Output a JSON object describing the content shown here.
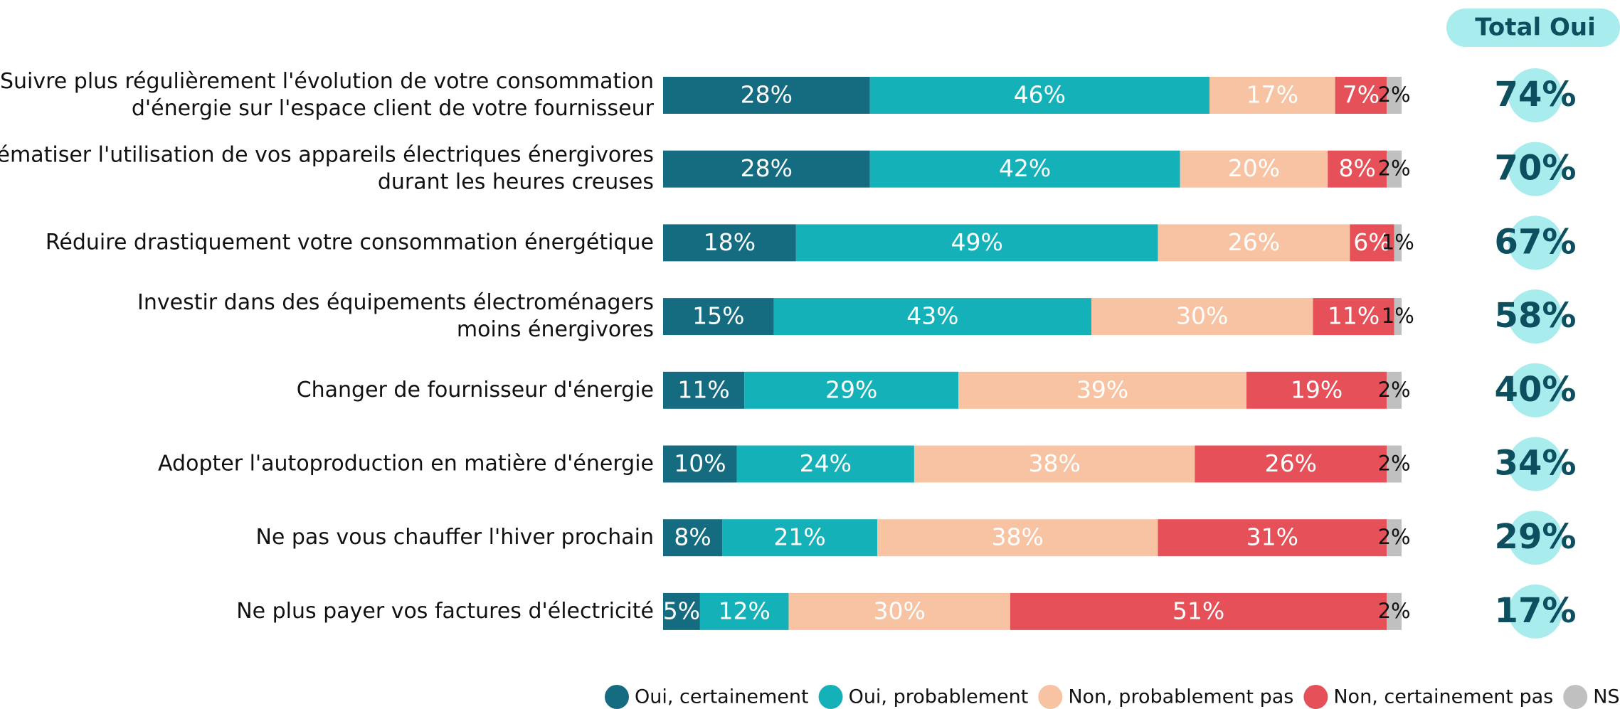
{
  "chart_data": {
    "type": "stacked_barh",
    "categories": [
      "Suivre plus régulièrement l'évolution de votre consommation\nd'énergie sur l'espace client de votre fournisseur",
      "Systématiser l'utilisation de vos appareils électriques énergivores\ndurant les heures creuses",
      "Réduire drastiquement votre consommation énergétique",
      "Investir dans des équipements électroménagers\nmoins énergivores",
      "Changer de fournisseur d'énergie",
      "Adopter l'autoproduction en matière d'énergie",
      "Ne pas vous chauffer l'hiver prochain",
      "Ne plus payer vos factures d'électricité"
    ],
    "xlim": [
      0,
      100
    ],
    "series": [
      {
        "name": "Oui, certainement",
        "color": "#156b80",
        "values": [
          28,
          28,
          18,
          15,
          11,
          10,
          8,
          5
        ],
        "value_labels": [
          "28%",
          "28%",
          "18%",
          "15%",
          "11%",
          "10%",
          "8%",
          "5%"
        ]
      },
      {
        "name": "Oui, probablement",
        "color": "#14b1b9",
        "values": [
          46,
          42,
          49,
          43,
          29,
          24,
          21,
          12
        ],
        "value_labels": [
          "46%",
          "42%",
          "49%",
          "43%",
          "29%",
          "24%",
          "21%",
          "12%"
        ]
      },
      {
        "name": "Non, probablement pas",
        "color": "#f7c3a3",
        "values": [
          17,
          20,
          26,
          30,
          39,
          38,
          38,
          30
        ],
        "value_labels": [
          "17%",
          "20%",
          "26%",
          "30%",
          "39%",
          "38%",
          "38%",
          "30%"
        ]
      },
      {
        "name": "Non, certainement pas",
        "color": "#e65058",
        "values": [
          7,
          8,
          6,
          11,
          19,
          26,
          31,
          51
        ],
        "value_labels": [
          "7%",
          "8%",
          "6%",
          "11%",
          "19%",
          "26%",
          "31%",
          "51%"
        ]
      },
      {
        "name": "NSP",
        "color": "#c0c0c0",
        "values": [
          2,
          2,
          1,
          1,
          2,
          2,
          2,
          2
        ],
        "value_labels": [
          "2%",
          "2%",
          "1%",
          "1%",
          "2%",
          "2%",
          "2%",
          "2%"
        ]
      }
    ],
    "total_header": "Total Oui",
    "totals": {
      "values": [
        74,
        70,
        67,
        58,
        40,
        34,
        29,
        17
      ],
      "value_labels": [
        "74%",
        "70%",
        "67%",
        "58%",
        "40%",
        "34%",
        "29%",
        "17%"
      ]
    }
  }
}
